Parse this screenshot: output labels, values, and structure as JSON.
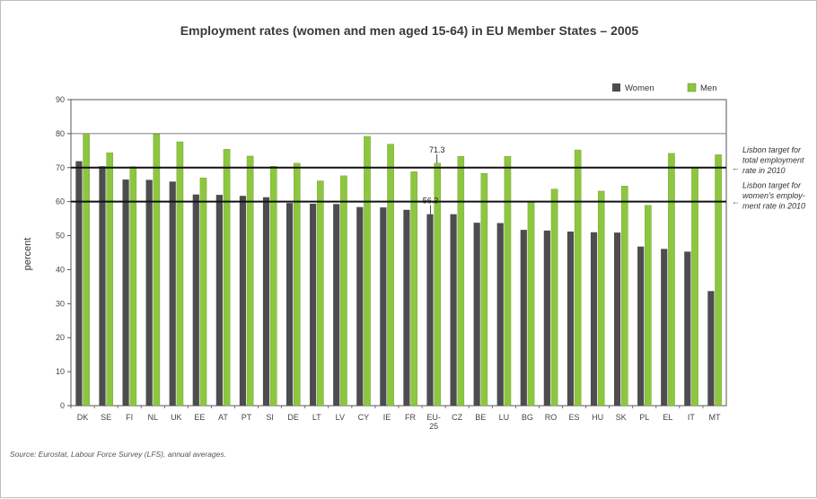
{
  "chart_data": {
    "type": "bar",
    "title": "Employment rates (women and men aged 15-64) in EU Member States – 2005",
    "ylabel": "percent",
    "xlabel": "",
    "ylim": [
      0,
      90
    ],
    "yticks": [
      0,
      10,
      20,
      30,
      40,
      50,
      60,
      70,
      80,
      90
    ],
    "grid": false,
    "legend_position": "top-right",
    "categories": [
      "DK",
      "SE",
      "FI",
      "NL",
      "UK",
      "EE",
      "AT",
      "PT",
      "SI",
      "DE",
      "LT",
      "LV",
      "CY",
      "IE",
      "FR",
      "EU-25",
      "CZ",
      "BE",
      "LU",
      "BG",
      "RO",
      "ES",
      "HU",
      "SK",
      "PL",
      "EL",
      "IT",
      "MT"
    ],
    "category_display": [
      [
        "DK"
      ],
      [
        "SE"
      ],
      [
        "FI"
      ],
      [
        "NL"
      ],
      [
        "UK"
      ],
      [
        "EE"
      ],
      [
        "AT"
      ],
      [
        "PT"
      ],
      [
        "SI"
      ],
      [
        "DE"
      ],
      [
        "LT"
      ],
      [
        "LV"
      ],
      [
        "CY"
      ],
      [
        "IE"
      ],
      [
        "FR"
      ],
      [
        "EU-",
        "25"
      ],
      [
        "CZ"
      ],
      [
        "BE"
      ],
      [
        "LU"
      ],
      [
        "BG"
      ],
      [
        "RO"
      ],
      [
        "ES"
      ],
      [
        "HU"
      ],
      [
        "SK"
      ],
      [
        "PL"
      ],
      [
        "EL"
      ],
      [
        "IT"
      ],
      [
        "MT"
      ]
    ],
    "series": [
      {
        "name": "Women",
        "color": "#4d4d4f",
        "values": [
          71.9,
          70.4,
          66.5,
          66.4,
          65.9,
          62.1,
          62.0,
          61.7,
          61.3,
          59.6,
          59.4,
          59.3,
          58.4,
          58.3,
          57.6,
          56.3,
          56.3,
          53.8,
          53.7,
          51.7,
          51.5,
          51.2,
          51.0,
          50.9,
          46.8,
          46.1,
          45.3,
          33.7
        ]
      },
      {
        "name": "Men",
        "color": "#8dc63f",
        "values": [
          79.8,
          74.4,
          70.3,
          79.9,
          77.6,
          67.0,
          75.4,
          73.4,
          70.4,
          71.3,
          66.1,
          67.6,
          79.2,
          76.9,
          68.8,
          71.3,
          73.3,
          68.3,
          73.3,
          60.0,
          63.7,
          75.2,
          63.1,
          64.6,
          58.9,
          74.2,
          69.9,
          73.8
        ]
      }
    ],
    "reference_lines": [
      {
        "value": 70,
        "note": [
          "Lisbon target for",
          "total employment",
          "rate in 2010"
        ]
      },
      {
        "value": 60,
        "note": [
          "Lisbon target for",
          "women's employ-",
          "ment rate in 2010"
        ]
      }
    ],
    "annotations": [
      {
        "category": "EU-25",
        "series": "Men",
        "text": "71.3"
      },
      {
        "category": "EU-25",
        "series": "Women",
        "text": "56.3"
      }
    ],
    "source": "Source: Eurostat, Labour Force Survey (LFS), annual averages."
  }
}
